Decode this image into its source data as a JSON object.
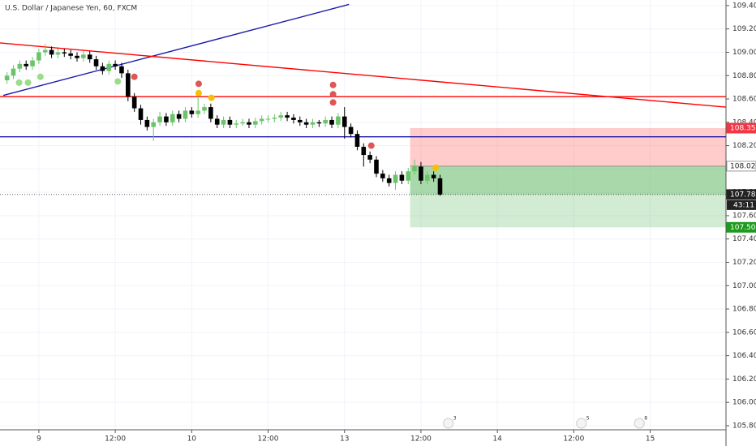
{
  "chart_data": {
    "type": "candlestick",
    "title": "U.S. Dollar / Japanese Yen, 60, FXCM",
    "x": [
      -5,
      -4,
      -3,
      -2,
      -1,
      0,
      1,
      2,
      3,
      4,
      5,
      6,
      7,
      8,
      9,
      10,
      11,
      12,
      13,
      14,
      15,
      16,
      17,
      18,
      19,
      20,
      21,
      22,
      23,
      24,
      25,
      26,
      27,
      28,
      29,
      30,
      31,
      32,
      33,
      34,
      35,
      36,
      37,
      38,
      39,
      40,
      41,
      42,
      43,
      44,
      45,
      46,
      47,
      48,
      49,
      50,
      51,
      52,
      53,
      54,
      55,
      56,
      57,
      58,
      59,
      60,
      61,
      62,
      63
    ],
    "open": [
      108.76,
      108.8,
      108.86,
      108.9,
      108.88,
      108.93,
      109.0,
      109.02,
      108.98,
      109.0,
      108.99,
      108.97,
      108.95,
      108.98,
      108.94,
      108.88,
      108.84,
      108.9,
      108.88,
      108.82,
      108.62,
      108.52,
      108.42,
      108.36,
      108.4,
      108.45,
      108.4,
      108.47,
      108.43,
      108.5,
      108.47,
      108.5,
      108.53,
      108.43,
      108.38,
      108.42,
      108.38,
      108.39,
      108.4,
      108.38,
      108.41,
      108.43,
      108.43,
      108.44,
      108.46,
      108.44,
      108.42,
      108.4,
      108.38,
      108.4,
      108.39,
      108.42,
      108.38,
      108.45,
      108.36,
      108.3,
      108.19,
      108.12,
      108.08,
      107.96,
      107.92,
      107.88,
      107.95,
      107.9,
      107.98,
      108.02,
      107.9,
      107.95,
      107.92
    ],
    "high": [
      108.83,
      108.89,
      108.93,
      108.93,
      108.96,
      109.03,
      109.07,
      109.05,
      109.03,
      109.03,
      109.02,
      109.0,
      109.01,
      109.01,
      108.97,
      108.91,
      108.93,
      108.93,
      108.91,
      108.85,
      108.65,
      108.55,
      108.45,
      108.43,
      108.49,
      108.48,
      108.5,
      108.5,
      108.53,
      108.53,
      108.62,
      108.56,
      108.56,
      108.46,
      108.45,
      108.45,
      108.42,
      108.43,
      108.43,
      108.44,
      108.46,
      108.46,
      108.47,
      108.49,
      108.49,
      108.47,
      108.45,
      108.43,
      108.43,
      108.42,
      108.45,
      108.45,
      108.48,
      108.53,
      108.39,
      108.33,
      108.22,
      108.15,
      108.11,
      107.99,
      107.95,
      107.98,
      107.98,
      108.01,
      108.08,
      108.06,
      107.98,
      107.98,
      107.95
    ],
    "low": [
      108.73,
      108.77,
      108.83,
      108.85,
      108.85,
      108.9,
      108.97,
      108.95,
      108.95,
      108.96,
      108.94,
      108.92,
      108.92,
      108.91,
      108.85,
      108.81,
      108.81,
      108.85,
      108.78,
      108.58,
      108.49,
      108.38,
      108.33,
      108.24,
      108.37,
      108.37,
      108.37,
      108.4,
      108.4,
      108.44,
      108.44,
      108.47,
      108.4,
      108.35,
      108.35,
      108.35,
      108.35,
      108.37,
      108.35,
      108.35,
      108.38,
      108.4,
      108.4,
      108.41,
      108.41,
      108.39,
      108.37,
      108.35,
      108.35,
      108.36,
      108.36,
      108.35,
      108.35,
      108.26,
      108.27,
      108.16,
      108.02,
      108.05,
      107.93,
      107.89,
      107.85,
      107.82,
      107.87,
      107.87,
      107.95,
      107.87,
      107.87,
      107.89,
      107.77
    ],
    "close": [
      108.8,
      108.86,
      108.9,
      108.88,
      108.93,
      109.0,
      109.02,
      108.98,
      109.0,
      108.99,
      108.97,
      108.95,
      108.98,
      108.94,
      108.88,
      108.84,
      108.9,
      108.88,
      108.82,
      108.62,
      108.52,
      108.42,
      108.36,
      108.4,
      108.45,
      108.4,
      108.47,
      108.43,
      108.5,
      108.47,
      108.5,
      108.53,
      108.43,
      108.38,
      108.42,
      108.38,
      108.39,
      108.4,
      108.38,
      108.41,
      108.43,
      108.43,
      108.44,
      108.46,
      108.44,
      108.42,
      108.4,
      108.38,
      108.4,
      108.39,
      108.42,
      108.38,
      108.45,
      108.36,
      108.3,
      108.19,
      108.12,
      108.08,
      107.96,
      107.92,
      107.88,
      107.95,
      107.9,
      107.98,
      108.02,
      107.9,
      107.95,
      107.92,
      107.781
    ],
    "up_color": "#6cc46a",
    "down_color": "#000000",
    "xlim": [
      -6.1,
      107.9
    ],
    "xticks": [
      {
        "value": 0,
        "label": "9"
      },
      {
        "value": 12,
        "label": "12:00"
      },
      {
        "value": 24,
        "label": "10"
      },
      {
        "value": 36,
        "label": "12:00"
      },
      {
        "value": 48,
        "label": "13"
      },
      {
        "value": 60,
        "label": "12:00"
      },
      {
        "value": 72,
        "label": "14"
      },
      {
        "value": 84,
        "label": "12:00"
      },
      {
        "value": 96,
        "label": "15"
      }
    ],
    "ylim": [
      105.765,
      109.448
    ],
    "yticks": [
      {
        "value": 109.4,
        "label": "109.400"
      },
      {
        "value": 109.2,
        "label": "109.200"
      },
      {
        "value": 109.0,
        "label": "109.000"
      },
      {
        "value": 108.8,
        "label": "108.800"
      },
      {
        "value": 108.6,
        "label": "108.600"
      },
      {
        "value": 108.4,
        "label": "108.400"
      },
      {
        "value": 108.2,
        "label": "108.200"
      },
      {
        "value": 108.0,
        "label": "108.000"
      },
      {
        "value": 107.8,
        "label": "107.800"
      },
      {
        "value": 107.6,
        "label": "107.600"
      },
      {
        "value": 107.4,
        "label": "107.400"
      },
      {
        "value": 107.2,
        "label": "107.200"
      },
      {
        "value": 107.0,
        "label": "107.000"
      },
      {
        "value": 106.8,
        "label": "106.800"
      },
      {
        "value": 106.6,
        "label": "106.600"
      },
      {
        "value": 106.4,
        "label": "106.400"
      },
      {
        "value": 106.2,
        "label": "106.200"
      },
      {
        "value": 106.0,
        "label": "106.000"
      },
      {
        "value": 105.8,
        "label": "105.800"
      }
    ],
    "grid": true,
    "last_price": {
      "value": 107.781,
      "label": "107.781"
    },
    "countdown": "43:11",
    "position": {
      "start": 58.3,
      "stop": {
        "value": 108.35,
        "label": "108.350"
      },
      "entry": {
        "value": 108.024,
        "label": "108.024"
      },
      "target": {
        "value": 107.5,
        "label": "107.500"
      }
    },
    "lines": [
      {
        "color": "#ff0000",
        "x": [
          -6.1,
          107.9
        ],
        "y": [
          108.62,
          108.62
        ]
      },
      {
        "color": "#1a1aaa",
        "x": [
          -6.1,
          107.9
        ],
        "y": [
          108.276,
          108.276
        ]
      },
      {
        "color": "#1a1aaa",
        "x": [
          -5.6,
          48.7
        ],
        "y": [
          108.63,
          109.41
        ]
      },
      {
        "color": "#ff0000",
        "x": [
          -6.1,
          107.9
        ],
        "y": [
          109.08,
          108.53
        ]
      }
    ],
    "markers": [
      {
        "color": "#9bdc8a",
        "x": [
          -3.1,
          -1.7,
          0.25,
          12.4
        ],
        "y": [
          108.74,
          108.74,
          108.79,
          108.75
        ]
      },
      {
        "color": "#e05555",
        "x": [
          15.0,
          25.1,
          46.2,
          46.2,
          46.2,
          52.2
        ],
        "y": [
          108.79,
          108.73,
          108.72,
          108.64,
          108.57,
          108.2
        ]
      },
      {
        "color": "#f5c000",
        "x": [
          25.1,
          27.1,
          62.3
        ],
        "y": [
          108.65,
          108.61,
          108.01
        ]
      }
    ],
    "events": [
      {
        "x": 64.3,
        "label": "3"
      },
      {
        "x": 85.2,
        "label": "5"
      },
      {
        "x": 94.3,
        "label": "8"
      }
    ]
  }
}
